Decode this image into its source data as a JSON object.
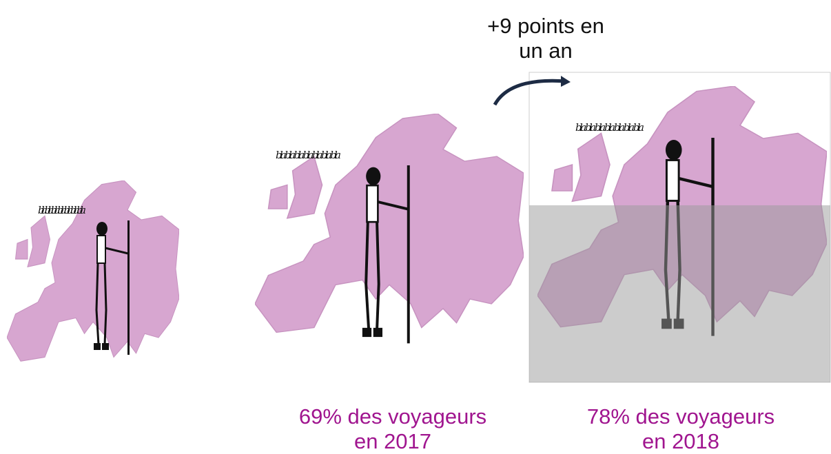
{
  "annotation": {
    "lines": [
      "+9 points en",
      "un an"
    ]
  },
  "speech": "bla bla bla bla bla bla bla",
  "captions": [
    {
      "lines": [
        "69% des voyageurs",
        "en 2017"
      ]
    },
    {
      "lines": [
        "78% des voyageurs",
        "en 2018"
      ]
    }
  ]
}
